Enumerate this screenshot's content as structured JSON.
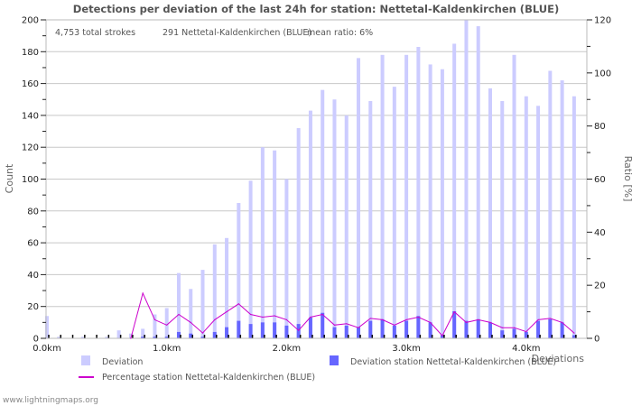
{
  "chart_data": {
    "type": "bar",
    "title": "Detections per deviation of the last 24h for station: Nettetal-Kaldenkirchen (BLUE)",
    "info": {
      "total": "4,753 total strokes",
      "station": "291 Nettetal-Kaldenkirchen (BLUE)",
      "mean": "mean ratio: 6%"
    },
    "ylabel": "Count",
    "y2label": "Ratio [%]",
    "xlabel": "Deviations",
    "ylim": [
      0,
      200
    ],
    "y2lim": [
      0,
      120
    ],
    "xlim_km": [
      0,
      4.5
    ],
    "grid": true,
    "yticks": [
      "0",
      "20",
      "40",
      "60",
      "80",
      "100",
      "120",
      "140",
      "160",
      "180",
      "200"
    ],
    "y2ticks": [
      "0",
      "20",
      "40",
      "60",
      "80",
      "100",
      "120"
    ],
    "xticks": [
      "0.0km",
      "1.0km",
      "2.0km",
      "3.0km",
      "4.0km"
    ],
    "x": [
      0.0,
      0.1,
      0.2,
      0.3,
      0.4,
      0.5,
      0.6,
      0.7,
      0.8,
      0.9,
      1.0,
      1.1,
      1.2,
      1.3,
      1.4,
      1.5,
      1.6,
      1.7,
      1.8,
      1.9,
      2.0,
      2.1,
      2.2,
      2.3,
      2.4,
      2.5,
      2.6,
      2.7,
      2.8,
      2.9,
      3.0,
      3.1,
      3.2,
      3.3,
      3.4,
      3.5,
      3.6,
      3.7,
      3.8,
      3.9,
      4.0,
      4.1,
      4.2,
      4.3,
      4.4
    ],
    "series": [
      {
        "name": "Deviation",
        "color": "#ccccff",
        "values": [
          14,
          1,
          0,
          1,
          0,
          1,
          5,
          3,
          6,
          15,
          19,
          41,
          31,
          43,
          59,
          63,
          85,
          99,
          120,
          118,
          100,
          132,
          143,
          156,
          150,
          140,
          176,
          149,
          178,
          158,
          178,
          183,
          172,
          169,
          185,
          200,
          196,
          157,
          149,
          178,
          152,
          146,
          168,
          162,
          152
        ]
      },
      {
        "name": "Deviation station Nettetal-Kaldenkirchen (BLUE)",
        "color": "#6666ff",
        "values": [
          0,
          0,
          0,
          0,
          0,
          0,
          0,
          0,
          1,
          1,
          1,
          4,
          3,
          1,
          4,
          7,
          11,
          9,
          10,
          10,
          8,
          9,
          13,
          16,
          7,
          8,
          7,
          11,
          12,
          8,
          11,
          14,
          10,
          2,
          17,
          11,
          12,
          10,
          5,
          6,
          4,
          11,
          12,
          10,
          2
        ]
      },
      {
        "name": "Percentage station Nettetal-Kaldenkirchen (BLUE)",
        "color": "#cc00cc",
        "type": "line",
        "values": [
          null,
          null,
          null,
          null,
          null,
          null,
          null,
          0,
          17,
          7,
          5,
          9,
          6,
          2,
          7,
          10,
          13,
          9,
          8,
          8.5,
          7,
          3,
          8,
          9,
          5,
          5.5,
          4,
          7.5,
          7,
          5,
          7,
          8,
          6,
          1,
          10,
          6,
          7,
          6,
          4,
          4,
          2.5,
          7,
          7.5,
          6,
          2
        ]
      }
    ],
    "legend": {
      "deviation": "Deviation",
      "station": "Deviation station Nettetal-Kaldenkirchen (BLUE)",
      "percentage": "Percentage station Nettetal-Kaldenkirchen (BLUE)"
    },
    "footer": "www.lightningmaps.org"
  }
}
